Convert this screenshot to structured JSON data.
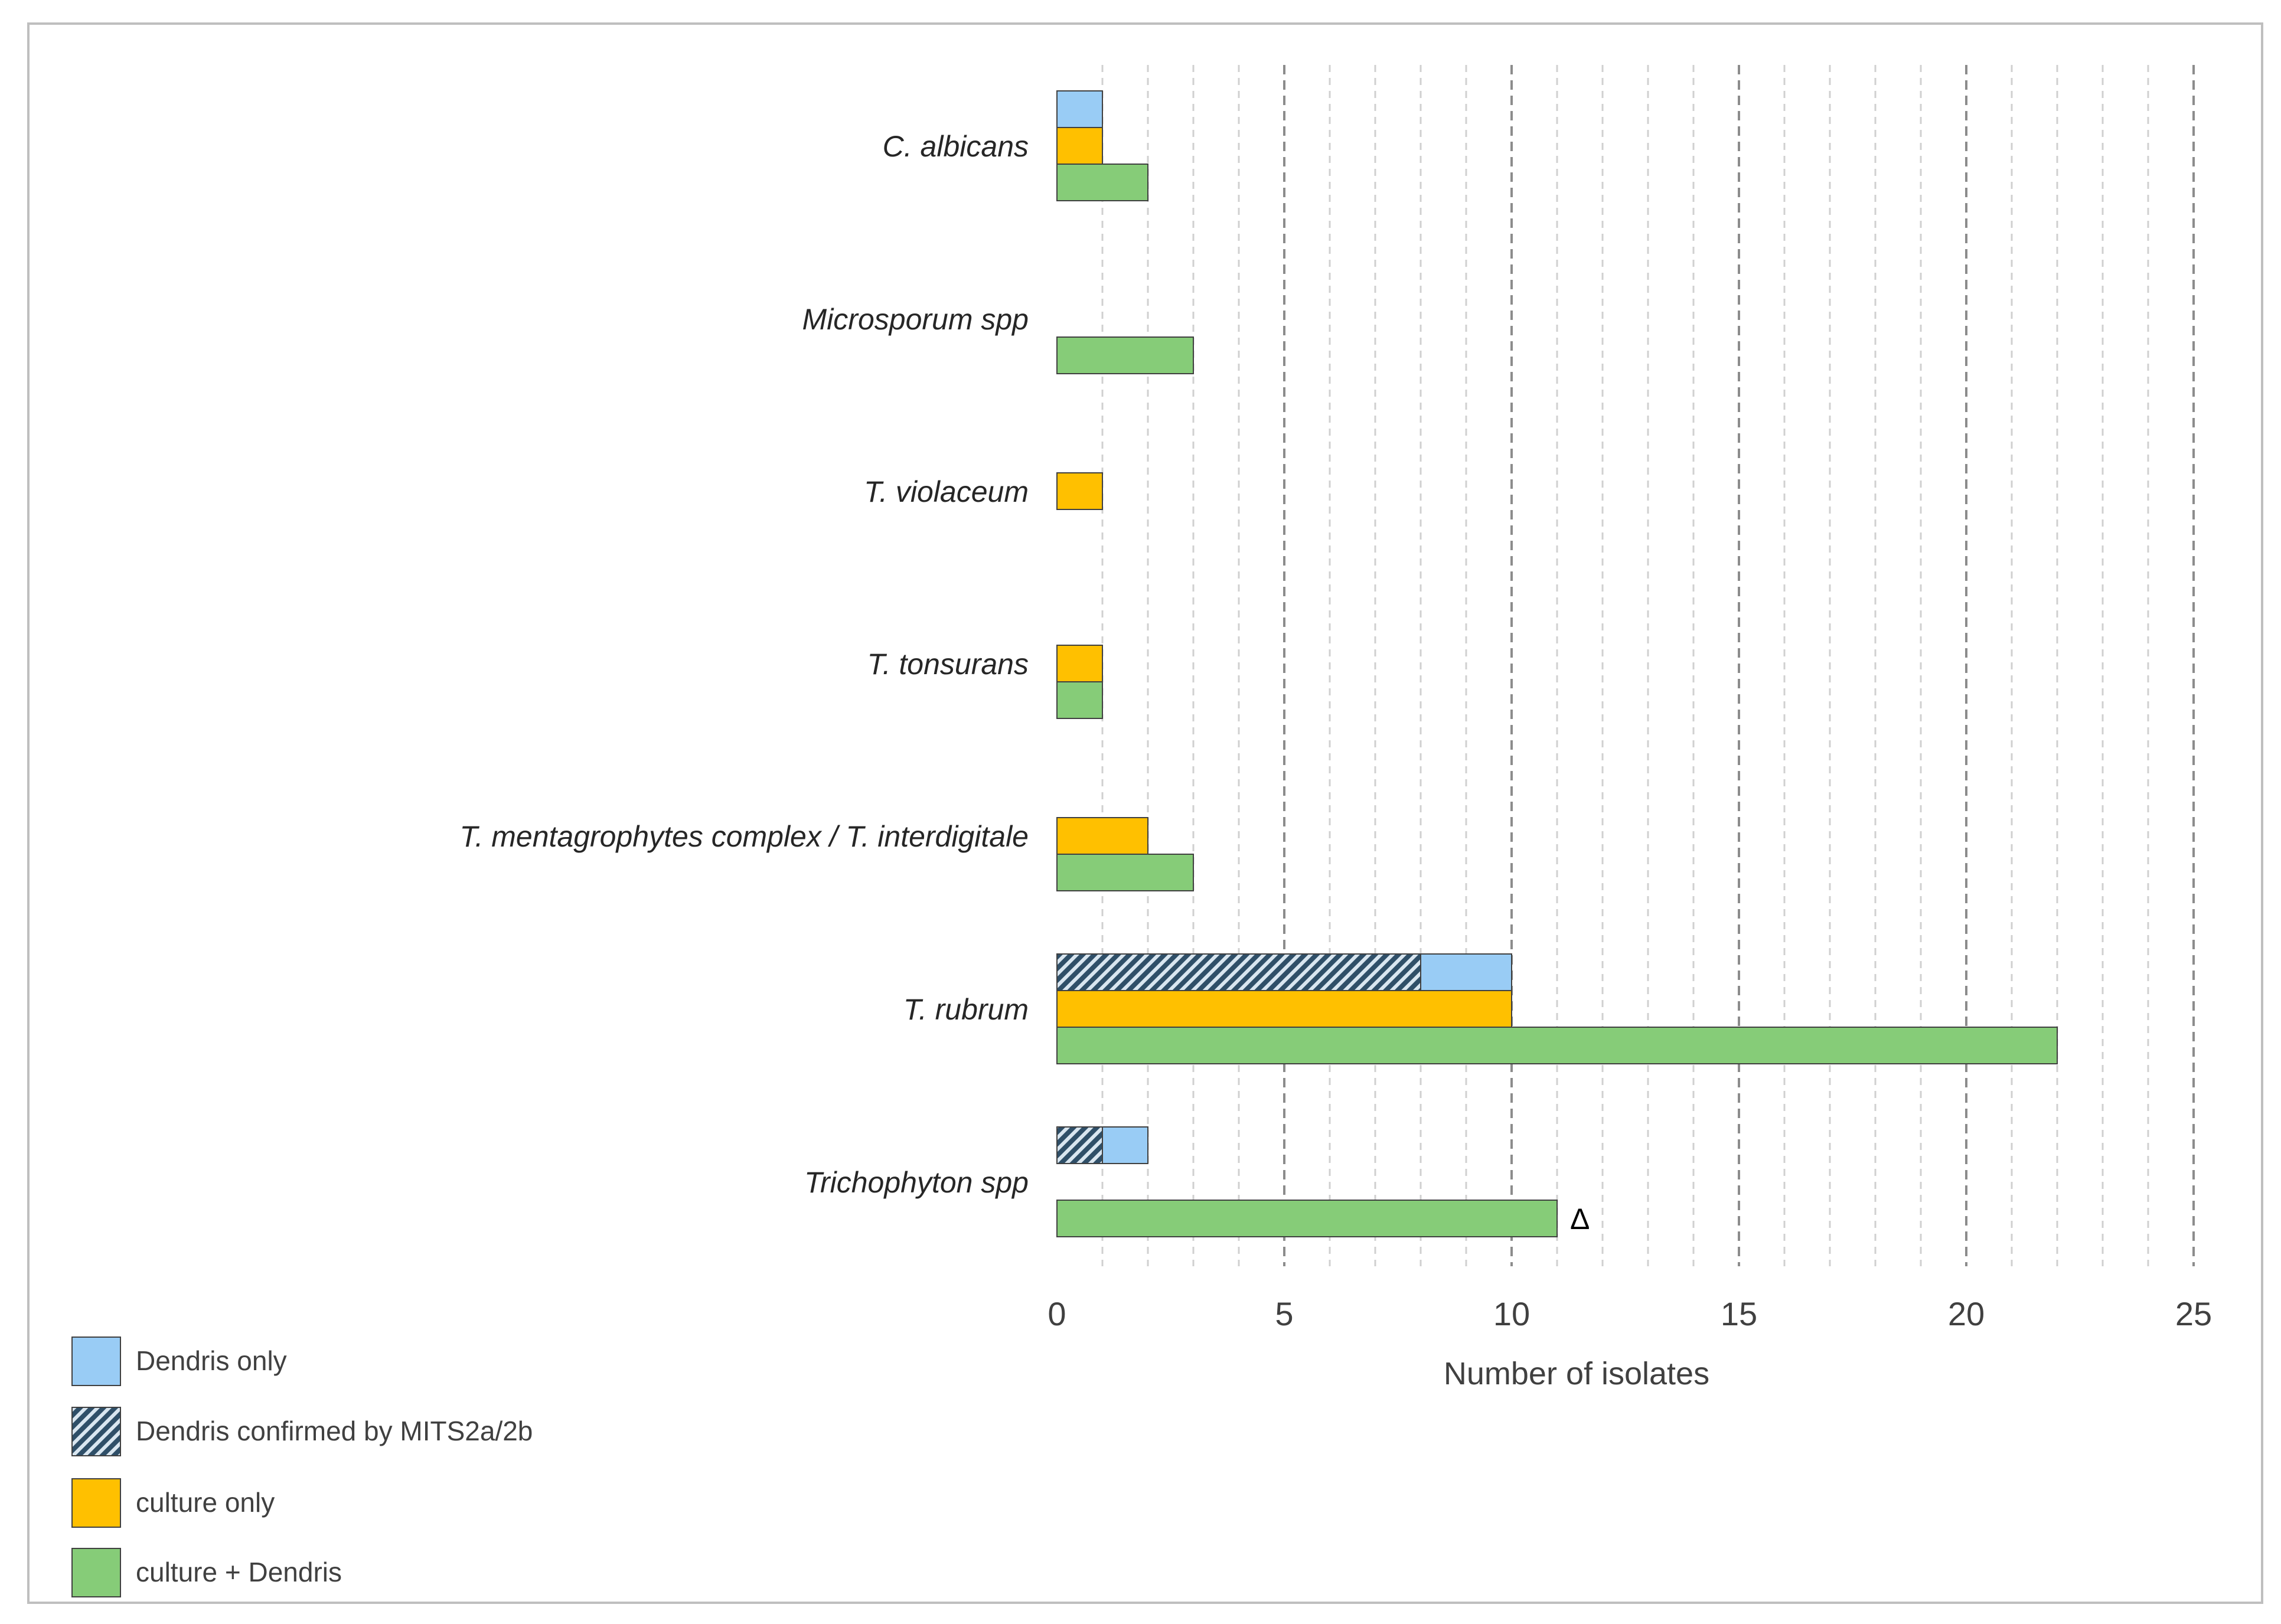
{
  "chart_data": {
    "type": "bar",
    "orientation": "horizontal",
    "title": "",
    "xlabel": "Number of isolates",
    "ylabel": "",
    "xlim": [
      0,
      25
    ],
    "xticks": [
      "0",
      "5",
      "10",
      "15",
      "20",
      "25"
    ],
    "minor_gridlines": true,
    "categories": [
      "C. albicans",
      "Microsporum spp",
      "T. violaceum",
      "T. tonsurans",
      "T. mentagrophytes complex / T. interdigitale",
      "T. rubrum",
      "Trichophyton spp"
    ],
    "rows": [
      {
        "category": "C. albicans",
        "dendris_confirmed": 0,
        "dendris_only": 1,
        "culture_only": 1,
        "culture_dendris": 2
      },
      {
        "category": "Microsporum spp",
        "dendris_confirmed": 0,
        "dendris_only": 0,
        "culture_only": 0,
        "culture_dendris": 3
      },
      {
        "category": "T. violaceum",
        "dendris_confirmed": 0,
        "dendris_only": 0,
        "culture_only": 1,
        "culture_dendris": 0
      },
      {
        "category": "T. tonsurans",
        "dendris_confirmed": 0,
        "dendris_only": 0,
        "culture_only": 1,
        "culture_dendris": 1
      },
      {
        "category": "T. mentagrophytes complex / T. interdigitale",
        "dendris_confirmed": 0,
        "dendris_only": 0,
        "culture_only": 2,
        "culture_dendris": 3
      },
      {
        "category": "T. rubrum",
        "dendris_confirmed": 8,
        "dendris_only": 2,
        "culture_only": 10,
        "culture_dendris": 22
      },
      {
        "category": "Trichophyton spp",
        "dendris_confirmed": 1,
        "dendris_only": 1,
        "culture_only": 0,
        "culture_dendris": 11,
        "annotation": "Δ"
      }
    ],
    "series": [
      {
        "key": "dendris_only",
        "name": "Dendris only",
        "color": "#99CCF5"
      },
      {
        "key": "dendris_confirmed",
        "name": "Dendris confirmed by MITS2a/2b",
        "color": "#5A86A8",
        "pattern": "hatched"
      },
      {
        "key": "culture_only",
        "name": "culture only",
        "color": "#FFC000"
      },
      {
        "key": "culture_dendris",
        "name": "culture + Dendris",
        "color": "#86CC78"
      }
    ],
    "legend_position": "bottom-left"
  }
}
